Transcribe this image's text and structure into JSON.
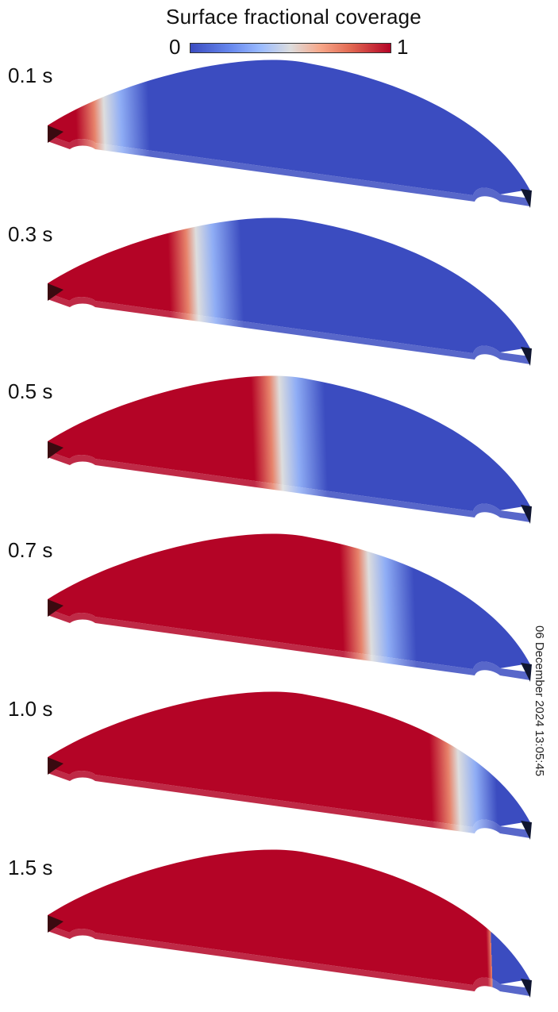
{
  "colorbar": {
    "title": "Surface fractional coverage",
    "min_label": "0",
    "max_label": "1",
    "low_color": "#3b4cc0",
    "mid_color": "#dddddd",
    "high_color": "#b40426"
  },
  "frames": [
    {
      "label": "0.1 s",
      "front": 0.12
    },
    {
      "label": "0.3 s",
      "front": 0.33
    },
    {
      "label": "0.5 s",
      "front": 0.52
    },
    {
      "label": "0.7 s",
      "front": 0.72
    },
    {
      "label": "1.0 s",
      "front": 0.92
    },
    {
      "label": "1.5 s",
      "front": 1.05
    }
  ],
  "timestamp": "06 December 2024 13:05:45"
}
